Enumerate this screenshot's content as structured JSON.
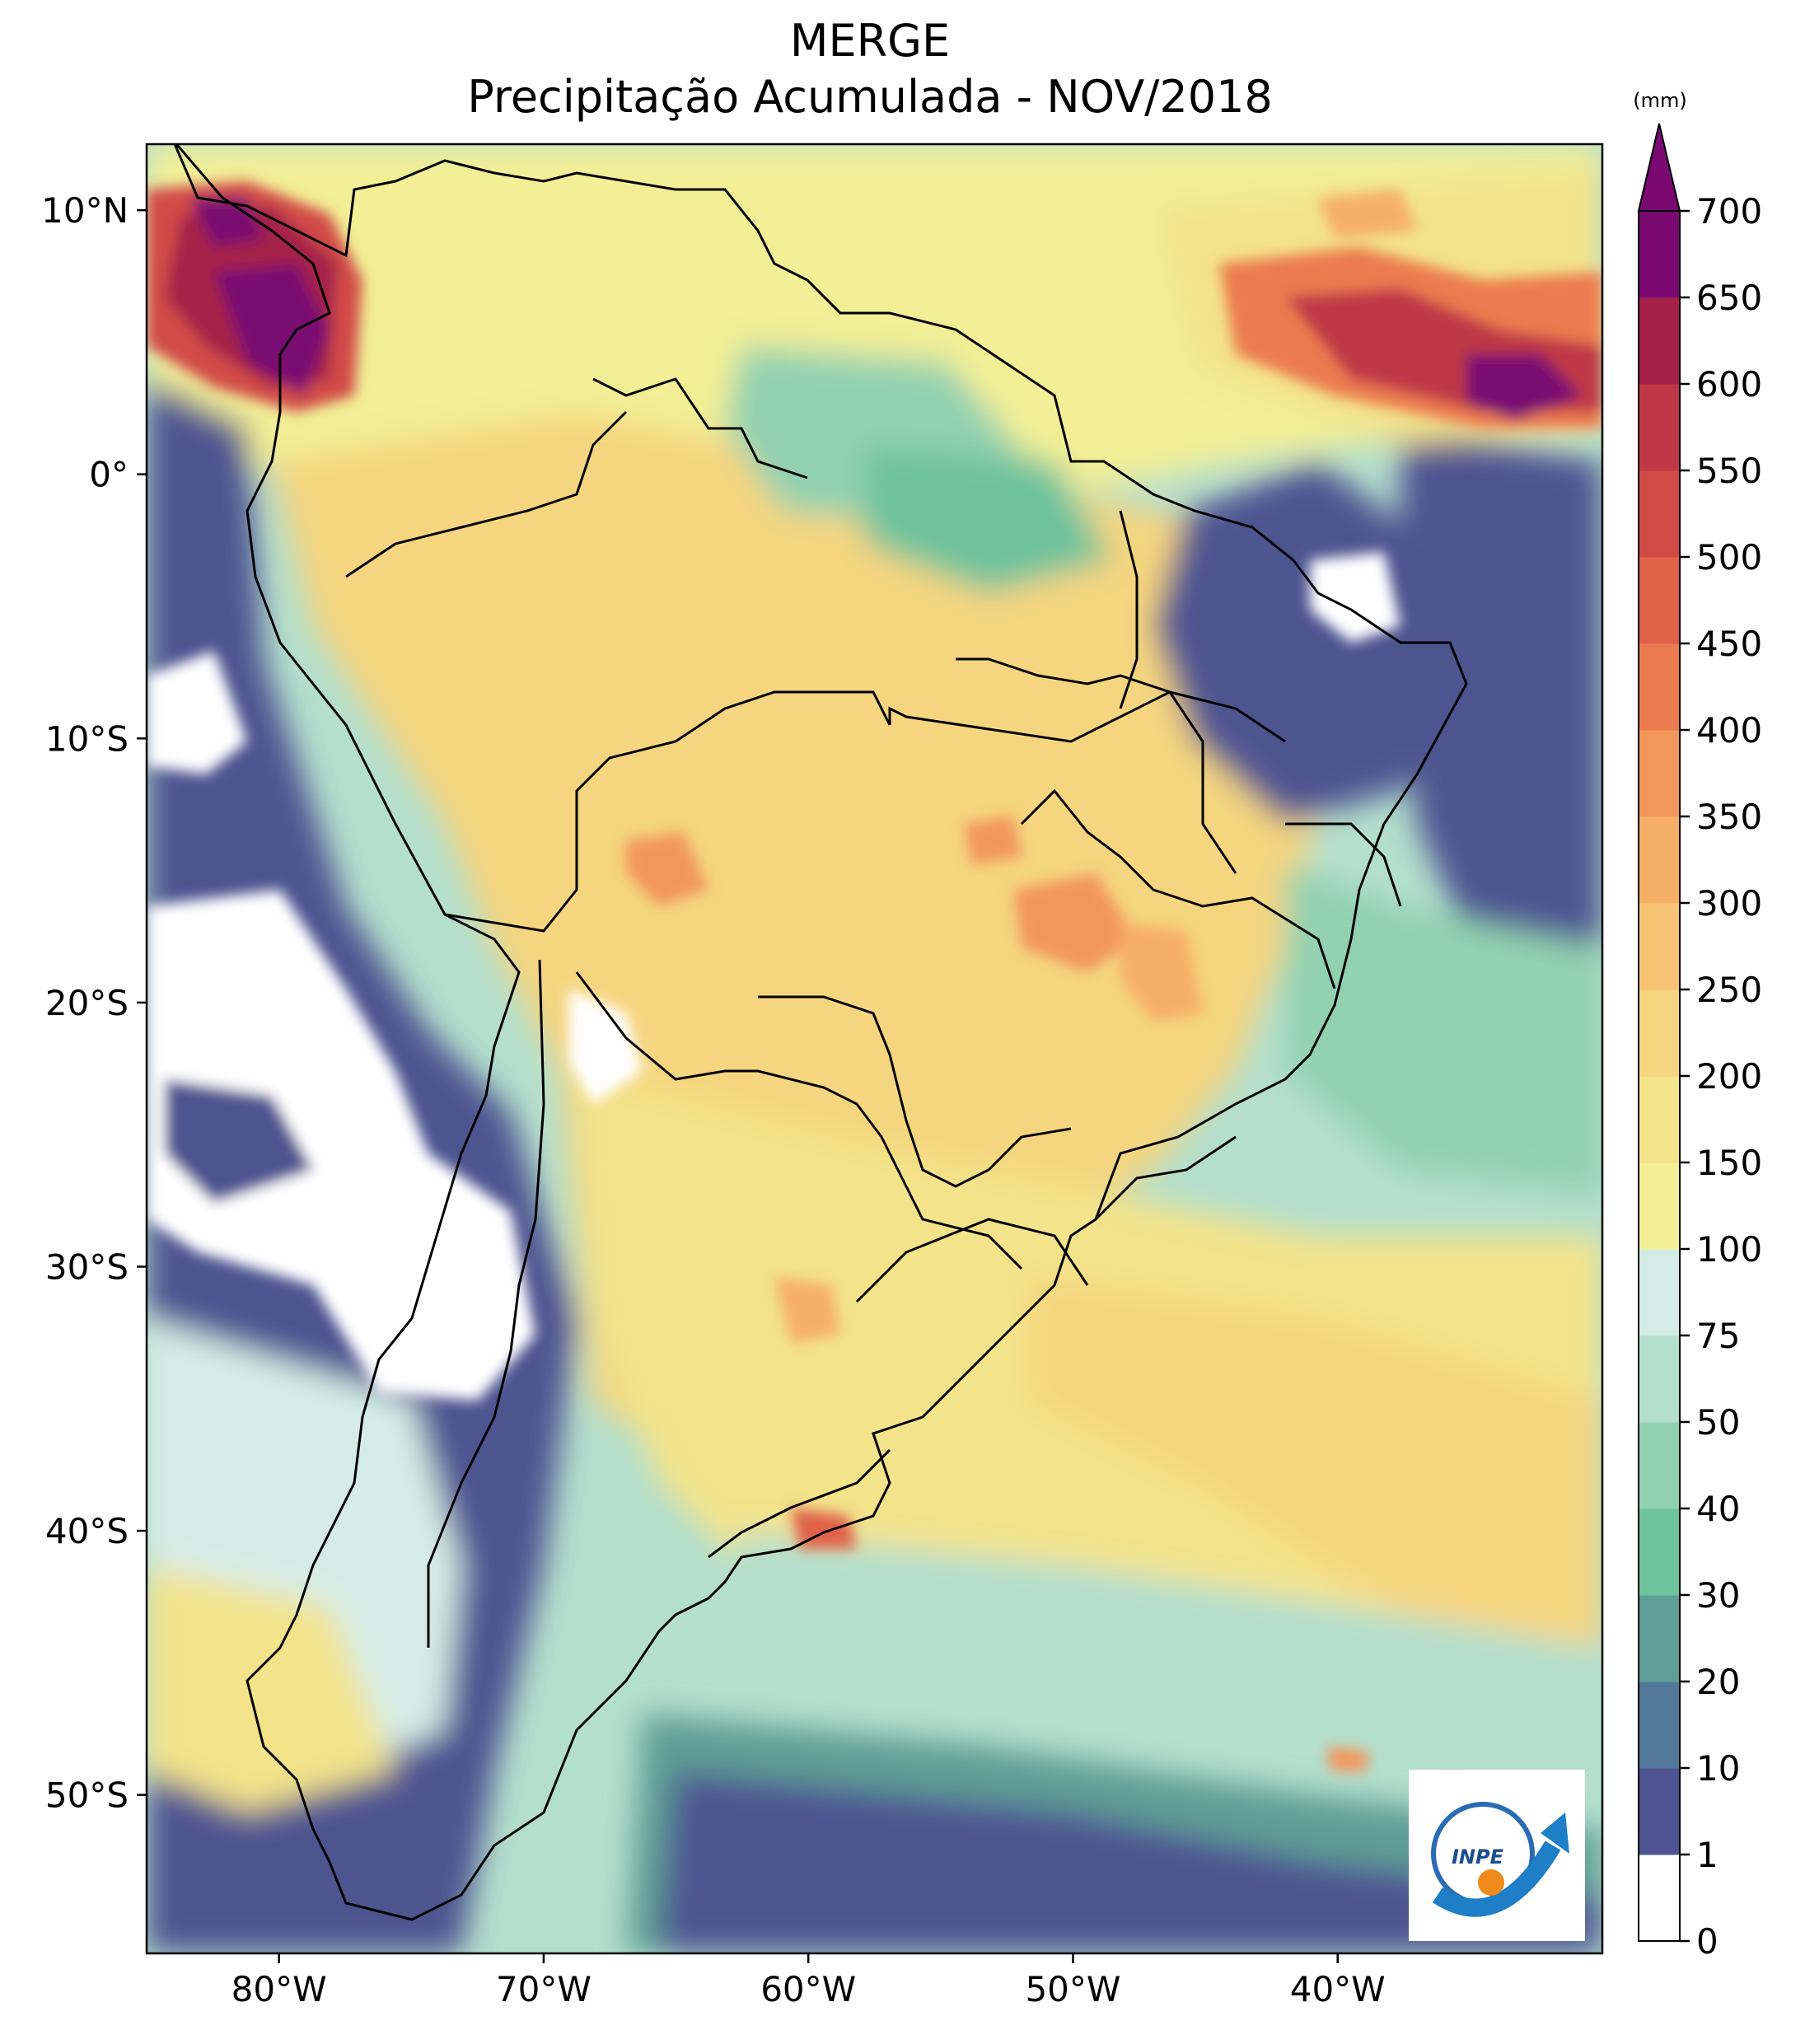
{
  "title": {
    "line1": "MERGE",
    "line2": "Precipitação Acumulada - NOV/2018"
  },
  "map": {
    "lon_range": [
      -85,
      -30
    ],
    "lat_range": [
      -56,
      12.5
    ],
    "lat_ticks": [
      {
        "value": 10,
        "label": "10°N"
      },
      {
        "value": 0,
        "label": "0°"
      },
      {
        "value": -10,
        "label": "10°S"
      },
      {
        "value": -20,
        "label": "20°S"
      },
      {
        "value": -30,
        "label": "30°S"
      },
      {
        "value": -40,
        "label": "40°S"
      },
      {
        "value": -50,
        "label": "50°S"
      }
    ],
    "lon_ticks": [
      {
        "value": -80,
        "label": "80°W"
      },
      {
        "value": -70,
        "label": "70°W"
      },
      {
        "value": -60,
        "label": "60°W"
      },
      {
        "value": -50,
        "label": "50°W"
      },
      {
        "value": -40,
        "label": "40°W"
      }
    ]
  },
  "colorbar": {
    "unit": "(mm)",
    "levels": [
      "0",
      "1",
      "10",
      "20",
      "30",
      "40",
      "50",
      "75",
      "100",
      "150",
      "200",
      "250",
      "300",
      "350",
      "400",
      "450",
      "500",
      "550",
      "600",
      "650",
      "700"
    ],
    "colors": [
      "#ffffff",
      "#4d5491",
      "#52789a",
      "#5e9e94",
      "#6fc39c",
      "#92d1b0",
      "#b4dfcd",
      "#d5ece6",
      "#f2ef96",
      "#f3e38a",
      "#f5d57f",
      "#f7c476",
      "#f6af69",
      "#f2975b",
      "#ec7c4f",
      "#e06249",
      "#d14b46",
      "#bf3847",
      "#a6214a",
      "#7a0a72"
    ],
    "extend_color": "#7a0a72"
  },
  "logo": {
    "text": "INPE"
  }
}
